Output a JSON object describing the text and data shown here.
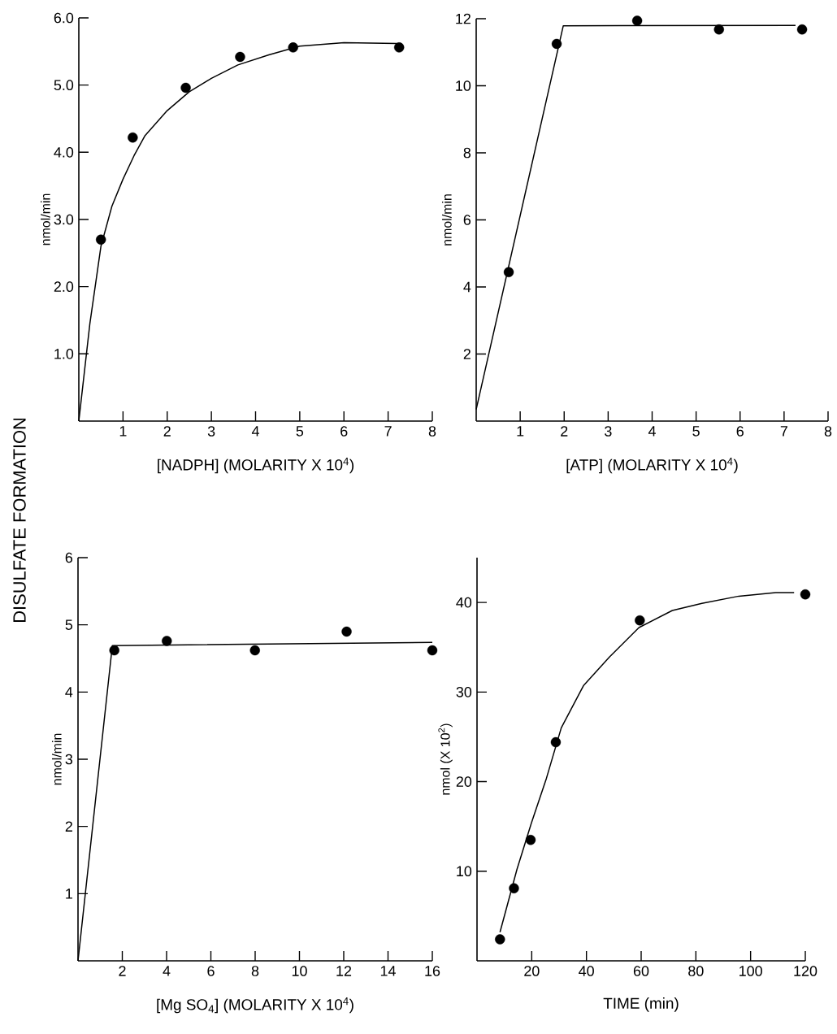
{
  "chart_data": [
    {
      "type": "scatter",
      "xlabel": "[NADPH] (MOLARITY X 10$^{4}$)",
      "ylabel": "nmol/min",
      "annotations": [
        "DISULFATE FORMATION"
      ],
      "marker": "circle",
      "xlim": [
        0,
        8
      ],
      "ylim": [
        0,
        6
      ],
      "xticks": [
        1,
        2,
        3,
        4,
        5,
        6,
        7,
        8
      ],
      "yticks": [
        {
          "value": 1,
          "label": "1.0"
        },
        {
          "value": 2,
          "label": "2.0"
        },
        {
          "value": 3,
          "label": "3.0"
        },
        {
          "value": 4,
          "label": "4.0"
        },
        {
          "value": 5,
          "label": "5.0"
        },
        {
          "value": 6,
          "label": "6.0"
        }
      ],
      "series": [
        {
          "color": "#000000",
          "x": [
            0.5,
            1.22,
            2.42,
            3.65,
            4.85,
            7.25
          ],
          "values": [
            2.7,
            4.22,
            4.96,
            5.42,
            5.56,
            5.56
          ]
        },
        {
          "type": "line",
          "marker": "none",
          "color": "#000000",
          "x": [
            0,
            0.25,
            0.5,
            0.75,
            1,
            1.25,
            1.5,
            2,
            2.5,
            3,
            3.6,
            4.3,
            5,
            6,
            7.2
          ],
          "values": [
            0,
            1.45,
            2.6,
            3.2,
            3.6,
            3.95,
            4.25,
            4.62,
            4.9,
            5.1,
            5.3,
            5.45,
            5.58,
            5.63,
            5.62
          ]
        }
      ]
    },
    {
      "type": "scatter",
      "xlabel": "[ATP] (MOLARITY X 10$^{4}$)",
      "ylabel": "nmol/min",
      "marker": "circle",
      "xlim": [
        0,
        8
      ],
      "ylim": [
        0,
        12
      ],
      "xticks": [
        1,
        2,
        3,
        4,
        5,
        6,
        7,
        8
      ],
      "yticks": [
        2,
        4,
        6,
        8,
        10,
        12
      ],
      "series": [
        {
          "color": "#000000",
          "x": [
            0.74,
            1.83,
            3.66,
            5.52,
            7.41
          ],
          "values": [
            4.44,
            11.25,
            11.94,
            11.68,
            11.68
          ]
        },
        {
          "type": "line",
          "marker": "none",
          "color": "#000000",
          "x": [
            0,
            1.98,
            7.26
          ],
          "values": [
            0.35,
            11.79,
            11.8
          ]
        }
      ]
    },
    {
      "type": "scatter",
      "xlabel": "[Mg SO$_{4}$] (MOLARITY X 10$^{4}$)",
      "ylabel": "nmol/min",
      "marker": "circle",
      "xlim": [
        0,
        16
      ],
      "ylim": [
        0,
        6
      ],
      "xticks": [
        2,
        4,
        6,
        8,
        10,
        12,
        14,
        16
      ],
      "yticks": [
        1,
        2,
        3,
        4,
        5,
        6
      ],
      "series": [
        {
          "color": "#000000",
          "x": [
            1.64,
            4.01,
            7.99,
            12.13,
            16
          ],
          "values": [
            4.62,
            4.76,
            4.62,
            4.9,
            4.62
          ]
        },
        {
          "type": "line",
          "marker": "none",
          "color": "#000000",
          "x": [
            0,
            1.55,
            16
          ],
          "values": [
            0,
            4.69,
            4.74
          ]
        }
      ]
    },
    {
      "type": "scatter",
      "xlabel": "TIME (min)",
      "ylabel": "nmol (X 10$^{2}$)",
      "marker": "circle",
      "xlim": [
        0,
        120
      ],
      "ylim": [
        0,
        45
      ],
      "xticks": [
        20,
        40,
        60,
        80,
        100,
        120
      ],
      "yticks": [
        10,
        20,
        30,
        40
      ],
      "series": [
        {
          "color": "#000000",
          "x": [
            8.4,
            13.5,
            19.6,
            28.8,
            59.5,
            120
          ],
          "values": [
            2.4,
            8.1,
            13.5,
            24.4,
            38.0,
            40.9
          ]
        },
        {
          "type": "line",
          "marker": "none",
          "color": "#000000",
          "x": [
            8.4,
            14.6,
            20,
            25.4,
            30.8,
            38.9,
            48.4,
            59.2,
            71.4,
            82.2,
            95.7,
            109.2,
            115.9
          ],
          "values": [
            3.2,
            10.2,
            15.5,
            20.4,
            26,
            30.7,
            33.9,
            37.2,
            39.1,
            39.9,
            40.7,
            41.1,
            41.1
          ]
        }
      ]
    }
  ]
}
